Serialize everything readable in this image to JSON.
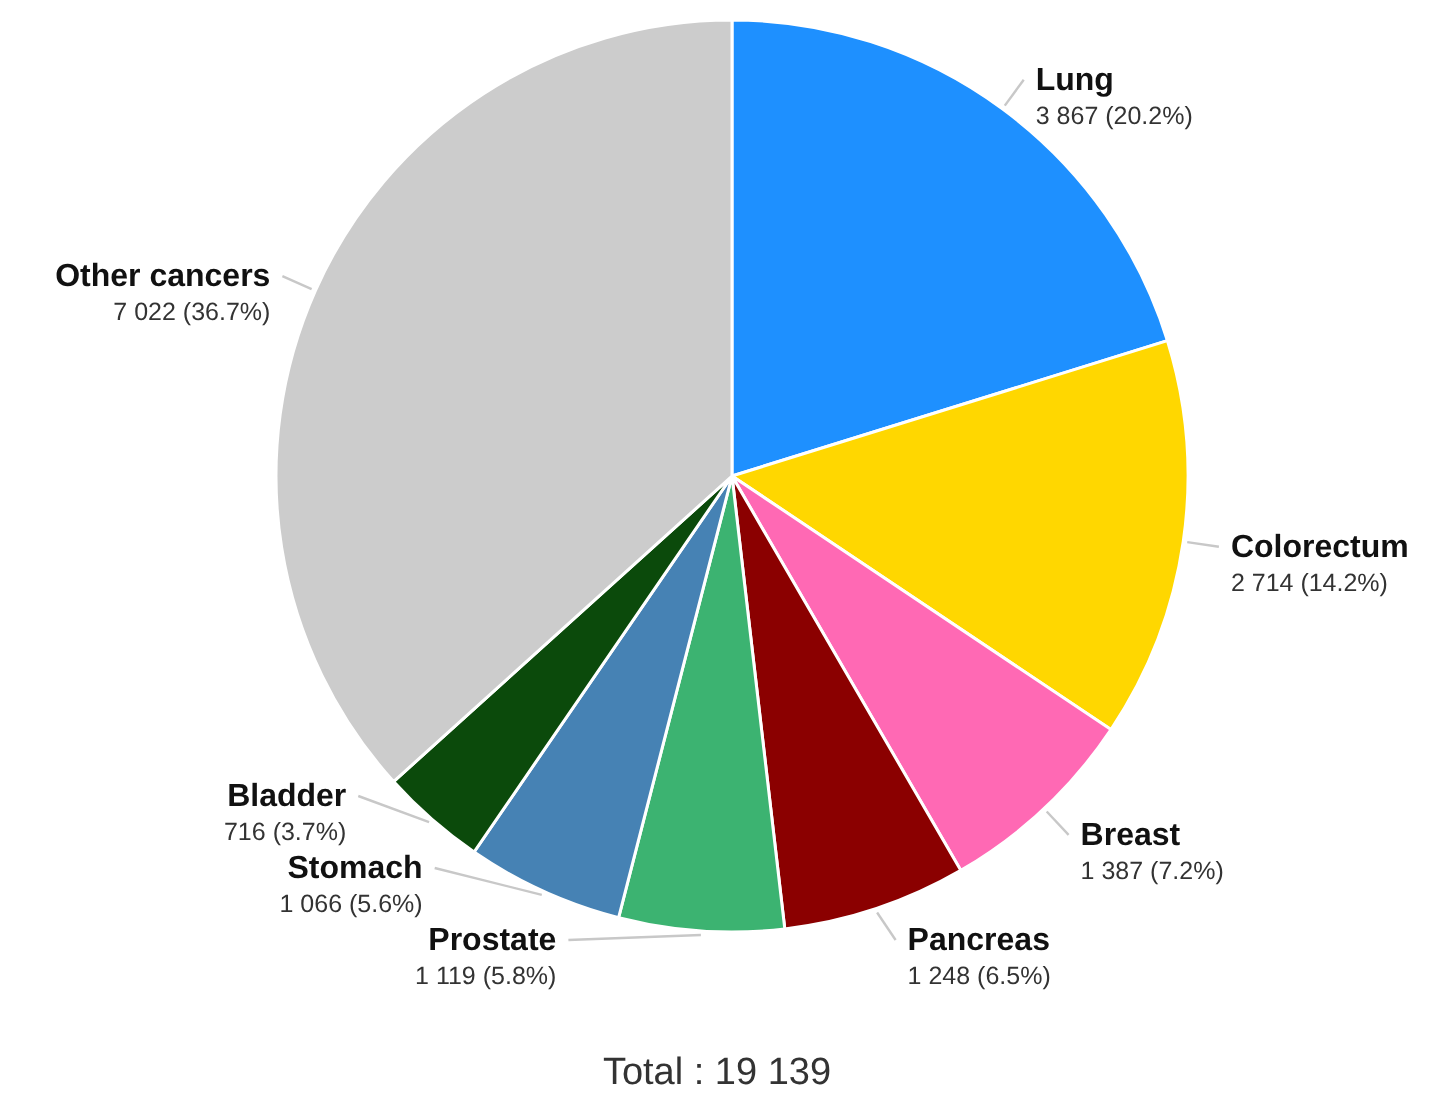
{
  "chart_data": {
    "type": "pie",
    "categories": [
      "Lung",
      "Colorectum",
      "Breast",
      "Pancreas",
      "Prostate",
      "Stomach",
      "Bladder",
      "Other cancers"
    ],
    "values": [
      3867,
      2714,
      1387,
      1248,
      1119,
      1066,
      716,
      7022
    ],
    "colors": [
      "#1e90ff",
      "#ffd700",
      "#ff69b4",
      "#8b0000",
      "#3cb371",
      "#4682b4",
      "#0b4a0b",
      "#cccccc"
    ],
    "value_labels": [
      "3 867 (20.2%)",
      "2 714 (14.2%)",
      "1 387 (7.2%)",
      "1 248 (6.5%)",
      "1 119 (5.8%)",
      "1 066 (5.6%)",
      "716 (3.7%)",
      "7 022 (36.7%)"
    ],
    "annotations": [
      "Total : 19 139"
    ]
  }
}
